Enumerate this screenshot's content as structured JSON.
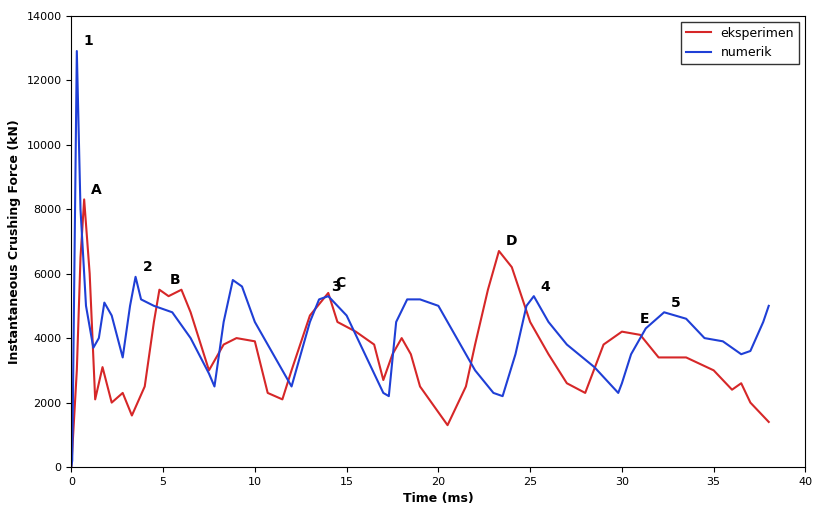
{
  "chart_data": {
    "type": "line",
    "x_label": "Time (ms)",
    "y_label": "Instantaneous Crushing Force (kN)",
    "xlim": [
      0,
      40
    ],
    "xticks": [
      0,
      5,
      10,
      15,
      20,
      25,
      30,
      35,
      40
    ],
    "ylim": [
      0,
      14000
    ],
    "yticks": [
      0,
      2000,
      4000,
      6000,
      8000,
      10000,
      12000,
      14000
    ],
    "grid": false,
    "legend": "upper right",
    "series": [
      {
        "name": "eksperimen",
        "color": "#d62728",
        "x": [
          0,
          0.3,
          0.5,
          0.7,
          1.0,
          1.3,
          1.7,
          2.2,
          2.8,
          3.3,
          4.0,
          4.5,
          4.8,
          5.3,
          6.0,
          6.5,
          7.5,
          8.3,
          9.0,
          10.0,
          10.7,
          11.5,
          12.0,
          13.0,
          14.0,
          14.5,
          15.5,
          16.5,
          17.0,
          17.5,
          18.0,
          18.5,
          19.0,
          20.5,
          21.5,
          22.0,
          22.7,
          23.3,
          24.0,
          25.0,
          26.0,
          27.0,
          28.0,
          29.0,
          30.0,
          31.0,
          32.0,
          33.5,
          35.0,
          36.0,
          36.5,
          37.0,
          38.0
        ],
        "values": [
          0,
          3000,
          6500,
          8300,
          6000,
          2100,
          3100,
          2000,
          2300,
          1600,
          2500,
          4500,
          5500,
          5300,
          5500,
          4800,
          3000,
          3800,
          4000,
          3900,
          2300,
          2100,
          3000,
          4700,
          5400,
          4500,
          4200,
          3800,
          2700,
          3500,
          4000,
          3500,
          2500,
          1300,
          2500,
          3800,
          5500,
          6700,
          6200,
          4500,
          3500,
          2600,
          2300,
          3800,
          4200,
          4100,
          3400,
          3400,
          3000,
          2400,
          2600,
          2000,
          1400
        ]
      },
      {
        "name": "numerik",
        "color": "#1f3fd6",
        "x": [
          0,
          0.05,
          0.3,
          0.5,
          0.8,
          1.2,
          1.5,
          1.8,
          2.2,
          2.8,
          3.2,
          3.5,
          3.8,
          4.5,
          5.5,
          6.5,
          7.5,
          7.8,
          8.3,
          8.8,
          9.3,
          10.0,
          11.0,
          12.0,
          12.5,
          13.0,
          13.5,
          14.0,
          15.0,
          16.0,
          17.0,
          17.3,
          17.7,
          18.3,
          19.0,
          20.0,
          21.0,
          22.0,
          23.0,
          23.5,
          24.2,
          24.8,
          25.2,
          26.0,
          27.0,
          28.5,
          29.8,
          30.0,
          30.5,
          31.3,
          32.3,
          33.5,
          34.5,
          35.5,
          36.5,
          37.0,
          37.7,
          38.0
        ],
        "values": [
          0,
          200,
          12900,
          8000,
          5000,
          3700,
          4000,
          5100,
          4700,
          3400,
          5000,
          5900,
          5200,
          5000,
          4800,
          4000,
          2900,
          2500,
          4500,
          5800,
          5600,
          4500,
          3500,
          2500,
          3500,
          4500,
          5200,
          5300,
          4700,
          3500,
          2300,
          2200,
          4500,
          5200,
          5200,
          5000,
          4000,
          3000,
          2300,
          2200,
          3500,
          5000,
          5300,
          4500,
          3800,
          3100,
          2300,
          2600,
          3500,
          4300,
          4800,
          4600,
          4000,
          3900,
          3500,
          3600,
          4500,
          5000
        ]
      }
    ],
    "annotations": [
      {
        "text": "1",
        "x": 0.3,
        "y": 12900,
        "series": "numerik"
      },
      {
        "text": "2",
        "x": 3.5,
        "y": 5900,
        "series": "numerik"
      },
      {
        "text": "3",
        "x": 13.8,
        "y": 5300,
        "series": "numerik"
      },
      {
        "text": "4",
        "x": 25.2,
        "y": 5300,
        "series": "numerik"
      },
      {
        "text": "5",
        "x": 32.3,
        "y": 4800,
        "series": "numerik"
      },
      {
        "text": "A",
        "x": 0.7,
        "y": 8300,
        "series": "eksperimen"
      },
      {
        "text": "B",
        "x": 5.0,
        "y": 5500,
        "series": "eksperimen"
      },
      {
        "text": "C",
        "x": 14.0,
        "y": 5400,
        "series": "eksperimen"
      },
      {
        "text": "D",
        "x": 23.3,
        "y": 6700,
        "series": "eksperimen"
      },
      {
        "text": "E",
        "x": 30.6,
        "y": 4300,
        "series": "eksperimen"
      }
    ]
  }
}
